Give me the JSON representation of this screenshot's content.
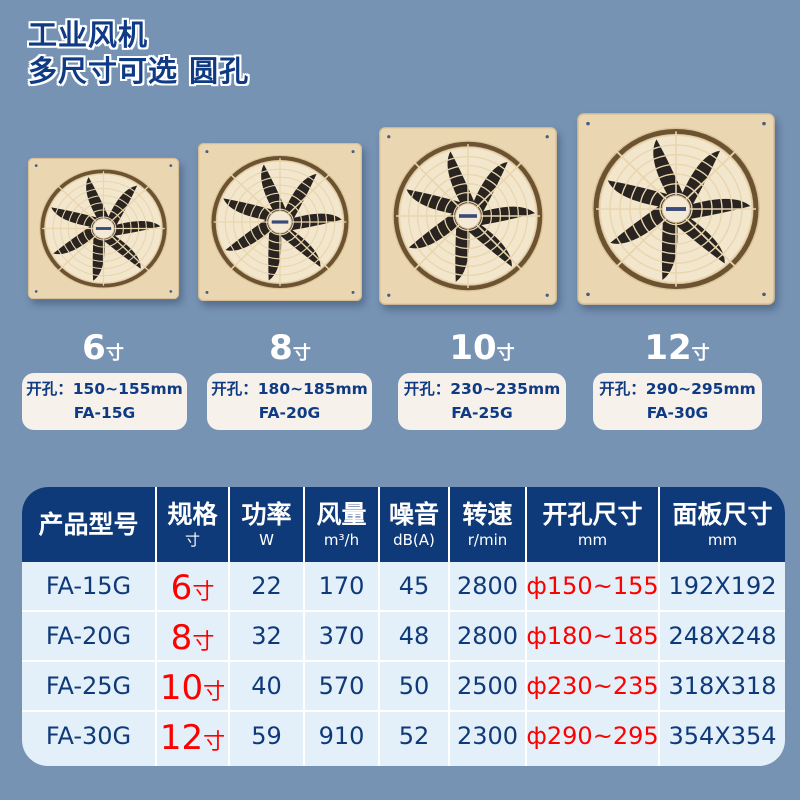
{
  "title": {
    "line1": "工业风机",
    "line2": "多尺寸可选  圆孔"
  },
  "colors": {
    "background": "#7793b4",
    "primary": "#0f3a7a",
    "accent_red": "#ff0000",
    "fan_body": "#e8d4ae"
  },
  "products": [
    {
      "size": "6",
      "unit": "寸",
      "hole": "开孔：150~155mm",
      "model": "FA-15G"
    },
    {
      "size": "8",
      "unit": "寸",
      "hole": "开孔：180~185mm",
      "model": "FA-20G"
    },
    {
      "size": "10",
      "unit": "寸",
      "hole": "开孔：230~235mm",
      "model": "FA-25G"
    },
    {
      "size": "12",
      "unit": "寸",
      "hole": "开孔：290~295mm",
      "model": "FA-30G"
    }
  ],
  "table": {
    "headers": [
      {
        "main": "产品型号",
        "sub": ""
      },
      {
        "main": "规格",
        "sub": "寸"
      },
      {
        "main": "功率",
        "sub": "W"
      },
      {
        "main": "风量",
        "sub": "m³/h"
      },
      {
        "main": "噪音",
        "sub": "dB(A)"
      },
      {
        "main": "转速",
        "sub": "r/min"
      },
      {
        "main": "开孔尺寸",
        "sub": "mm"
      },
      {
        "main": "面板尺寸",
        "sub": "mm"
      }
    ],
    "rows": [
      {
        "model": "FA-15G",
        "spec": "6",
        "spec_unit": "寸",
        "power": "22",
        "airflow": "170",
        "noise": "45",
        "speed": "2800",
        "hole": "ф150~155",
        "panel": "192X192"
      },
      {
        "model": "FA-20G",
        "spec": "8",
        "spec_unit": "寸",
        "power": "32",
        "airflow": "370",
        "noise": "48",
        "speed": "2800",
        "hole": "ф180~185",
        "panel": "248X248"
      },
      {
        "model": "FA-25G",
        "spec": "10",
        "spec_unit": "寸",
        "power": "40",
        "airflow": "570",
        "noise": "50",
        "speed": "2500",
        "hole": "ф230~235",
        "panel": "318X318"
      },
      {
        "model": "FA-30G",
        "spec": "12",
        "spec_unit": "寸",
        "power": "59",
        "airflow": "910",
        "noise": "52",
        "speed": "2300",
        "hole": "ф290~295",
        "panel": "354X354"
      }
    ]
  }
}
